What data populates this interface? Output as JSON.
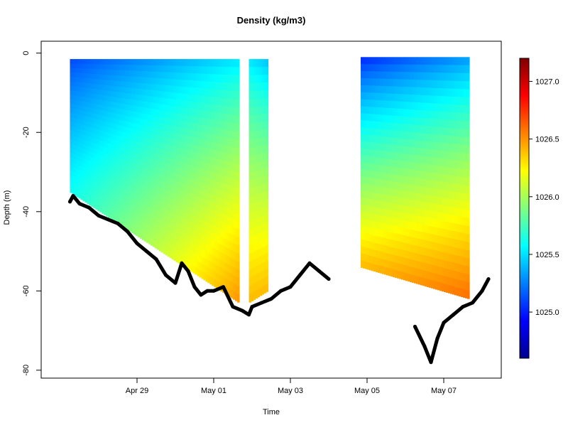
{
  "chart_data": {
    "type": "heatmap",
    "title": "Density (kg/m3)",
    "xlabel": "Time",
    "ylabel": "Depth (m)",
    "xlim": [
      "2024-04-26T12:00",
      "2024-05-08T12:00"
    ],
    "ylim": [
      -82,
      3
    ],
    "x_ticks": [
      {
        "label": "Apr 29",
        "value": "2024-04-29T00:00"
      },
      {
        "label": "May 01",
        "value": "2024-05-01T00:00"
      },
      {
        "label": "May 03",
        "value": "2024-05-03T00:00"
      },
      {
        "label": "May 05",
        "value": "2024-05-05T00:00"
      },
      {
        "label": "May 07",
        "value": "2024-05-07T00:00"
      }
    ],
    "y_ticks": [
      0,
      -20,
      -40,
      -60,
      -80
    ],
    "colorbar": {
      "min": 1024.6,
      "max": 1027.2,
      "ticks": [
        "1025.0",
        "1025.5",
        "1026.0",
        "1026.5",
        "1027.0"
      ],
      "tick_values": [
        1025.0,
        1025.5,
        1026.0,
        1026.5,
        1027.0
      ],
      "colormap": "jet"
    },
    "density_segments": [
      {
        "start": "2024-04-27T06:00",
        "end": "2024-05-01T16:00",
        "top_depth": -1.5,
        "bottom_depth_start": -35,
        "bottom_depth_end": -63,
        "surface_density_start": 1025.1,
        "surface_density_end": 1025.5,
        "bottom_density_start": 1025.6,
        "bottom_density_end": 1026.5
      },
      {
        "start": "2024-05-01T22:00",
        "end": "2024-05-02T10:00",
        "top_depth": -1.5,
        "bottom_depth_start": -63,
        "bottom_depth_end": -60,
        "surface_density_start": 1025.5,
        "surface_density_end": 1025.4,
        "bottom_density_start": 1026.4,
        "bottom_density_end": 1026.4
      },
      {
        "start": "2024-05-04T20:00",
        "end": "2024-05-07T16:00",
        "top_depth": -1.0,
        "bottom_depth_start": -54,
        "bottom_depth_end": -62,
        "surface_density_start": 1025.0,
        "surface_density_end": 1025.3,
        "bottom_density_start": 1026.4,
        "bottom_density_end": 1026.6
      }
    ],
    "bottom_depth_series": {
      "name": "",
      "color": "#000000",
      "points": [
        [
          "2024-04-27T06:00",
          -37.5
        ],
        [
          "2024-04-27T08:00",
          -36
        ],
        [
          "2024-04-27T12:00",
          -38
        ],
        [
          "2024-04-27T18:00",
          -39
        ],
        [
          "2024-04-28T00:00",
          -41
        ],
        [
          "2024-04-28T06:00",
          -42
        ],
        [
          "2024-04-28T12:00",
          -43
        ],
        [
          "2024-04-28T18:00",
          -45
        ],
        [
          "2024-04-29T00:00",
          -48
        ],
        [
          "2024-04-29T06:00",
          -50
        ],
        [
          "2024-04-29T12:00",
          -52
        ],
        [
          "2024-04-29T18:00",
          -56
        ],
        [
          "2024-04-30T00:00",
          -58
        ],
        [
          "2024-04-30T04:00",
          -53
        ],
        [
          "2024-04-30T08:00",
          -55
        ],
        [
          "2024-04-30T12:00",
          -59
        ],
        [
          "2024-04-30T16:00",
          -61
        ],
        [
          "2024-04-30T20:00",
          -60
        ],
        [
          "2024-05-01T00:00",
          -60
        ],
        [
          "2024-05-01T06:00",
          -59
        ],
        [
          "2024-05-01T12:00",
          -64
        ],
        [
          "2024-05-01T18:00",
          -65
        ],
        [
          "2024-05-01T22:00",
          -66
        ],
        [
          "2024-05-02T00:00",
          -64
        ],
        [
          "2024-05-02T06:00",
          -63
        ],
        [
          "2024-05-02T12:00",
          -62
        ],
        [
          "2024-05-02T18:00",
          -60
        ],
        [
          "2024-05-03T00:00",
          -59
        ],
        [
          "2024-05-03T06:00",
          -56
        ],
        [
          "2024-05-03T12:00",
          -53
        ],
        [
          "2024-05-03T18:00",
          -55
        ],
        [
          "2024-05-04T00:00",
          -57
        ],
        [
          "2024-05-06T06:00",
          -69
        ],
        [
          "2024-05-06T12:00",
          -74
        ],
        [
          "2024-05-06T16:00",
          -78
        ],
        [
          "2024-05-06T20:00",
          -72
        ],
        [
          "2024-05-07T00:00",
          -68
        ],
        [
          "2024-05-07T06:00",
          -66
        ],
        [
          "2024-05-07T12:00",
          -64
        ],
        [
          "2024-05-07T18:00",
          -63
        ],
        [
          "2024-05-08T00:00",
          -60
        ],
        [
          "2024-05-08T04:00",
          -57
        ]
      ]
    }
  }
}
